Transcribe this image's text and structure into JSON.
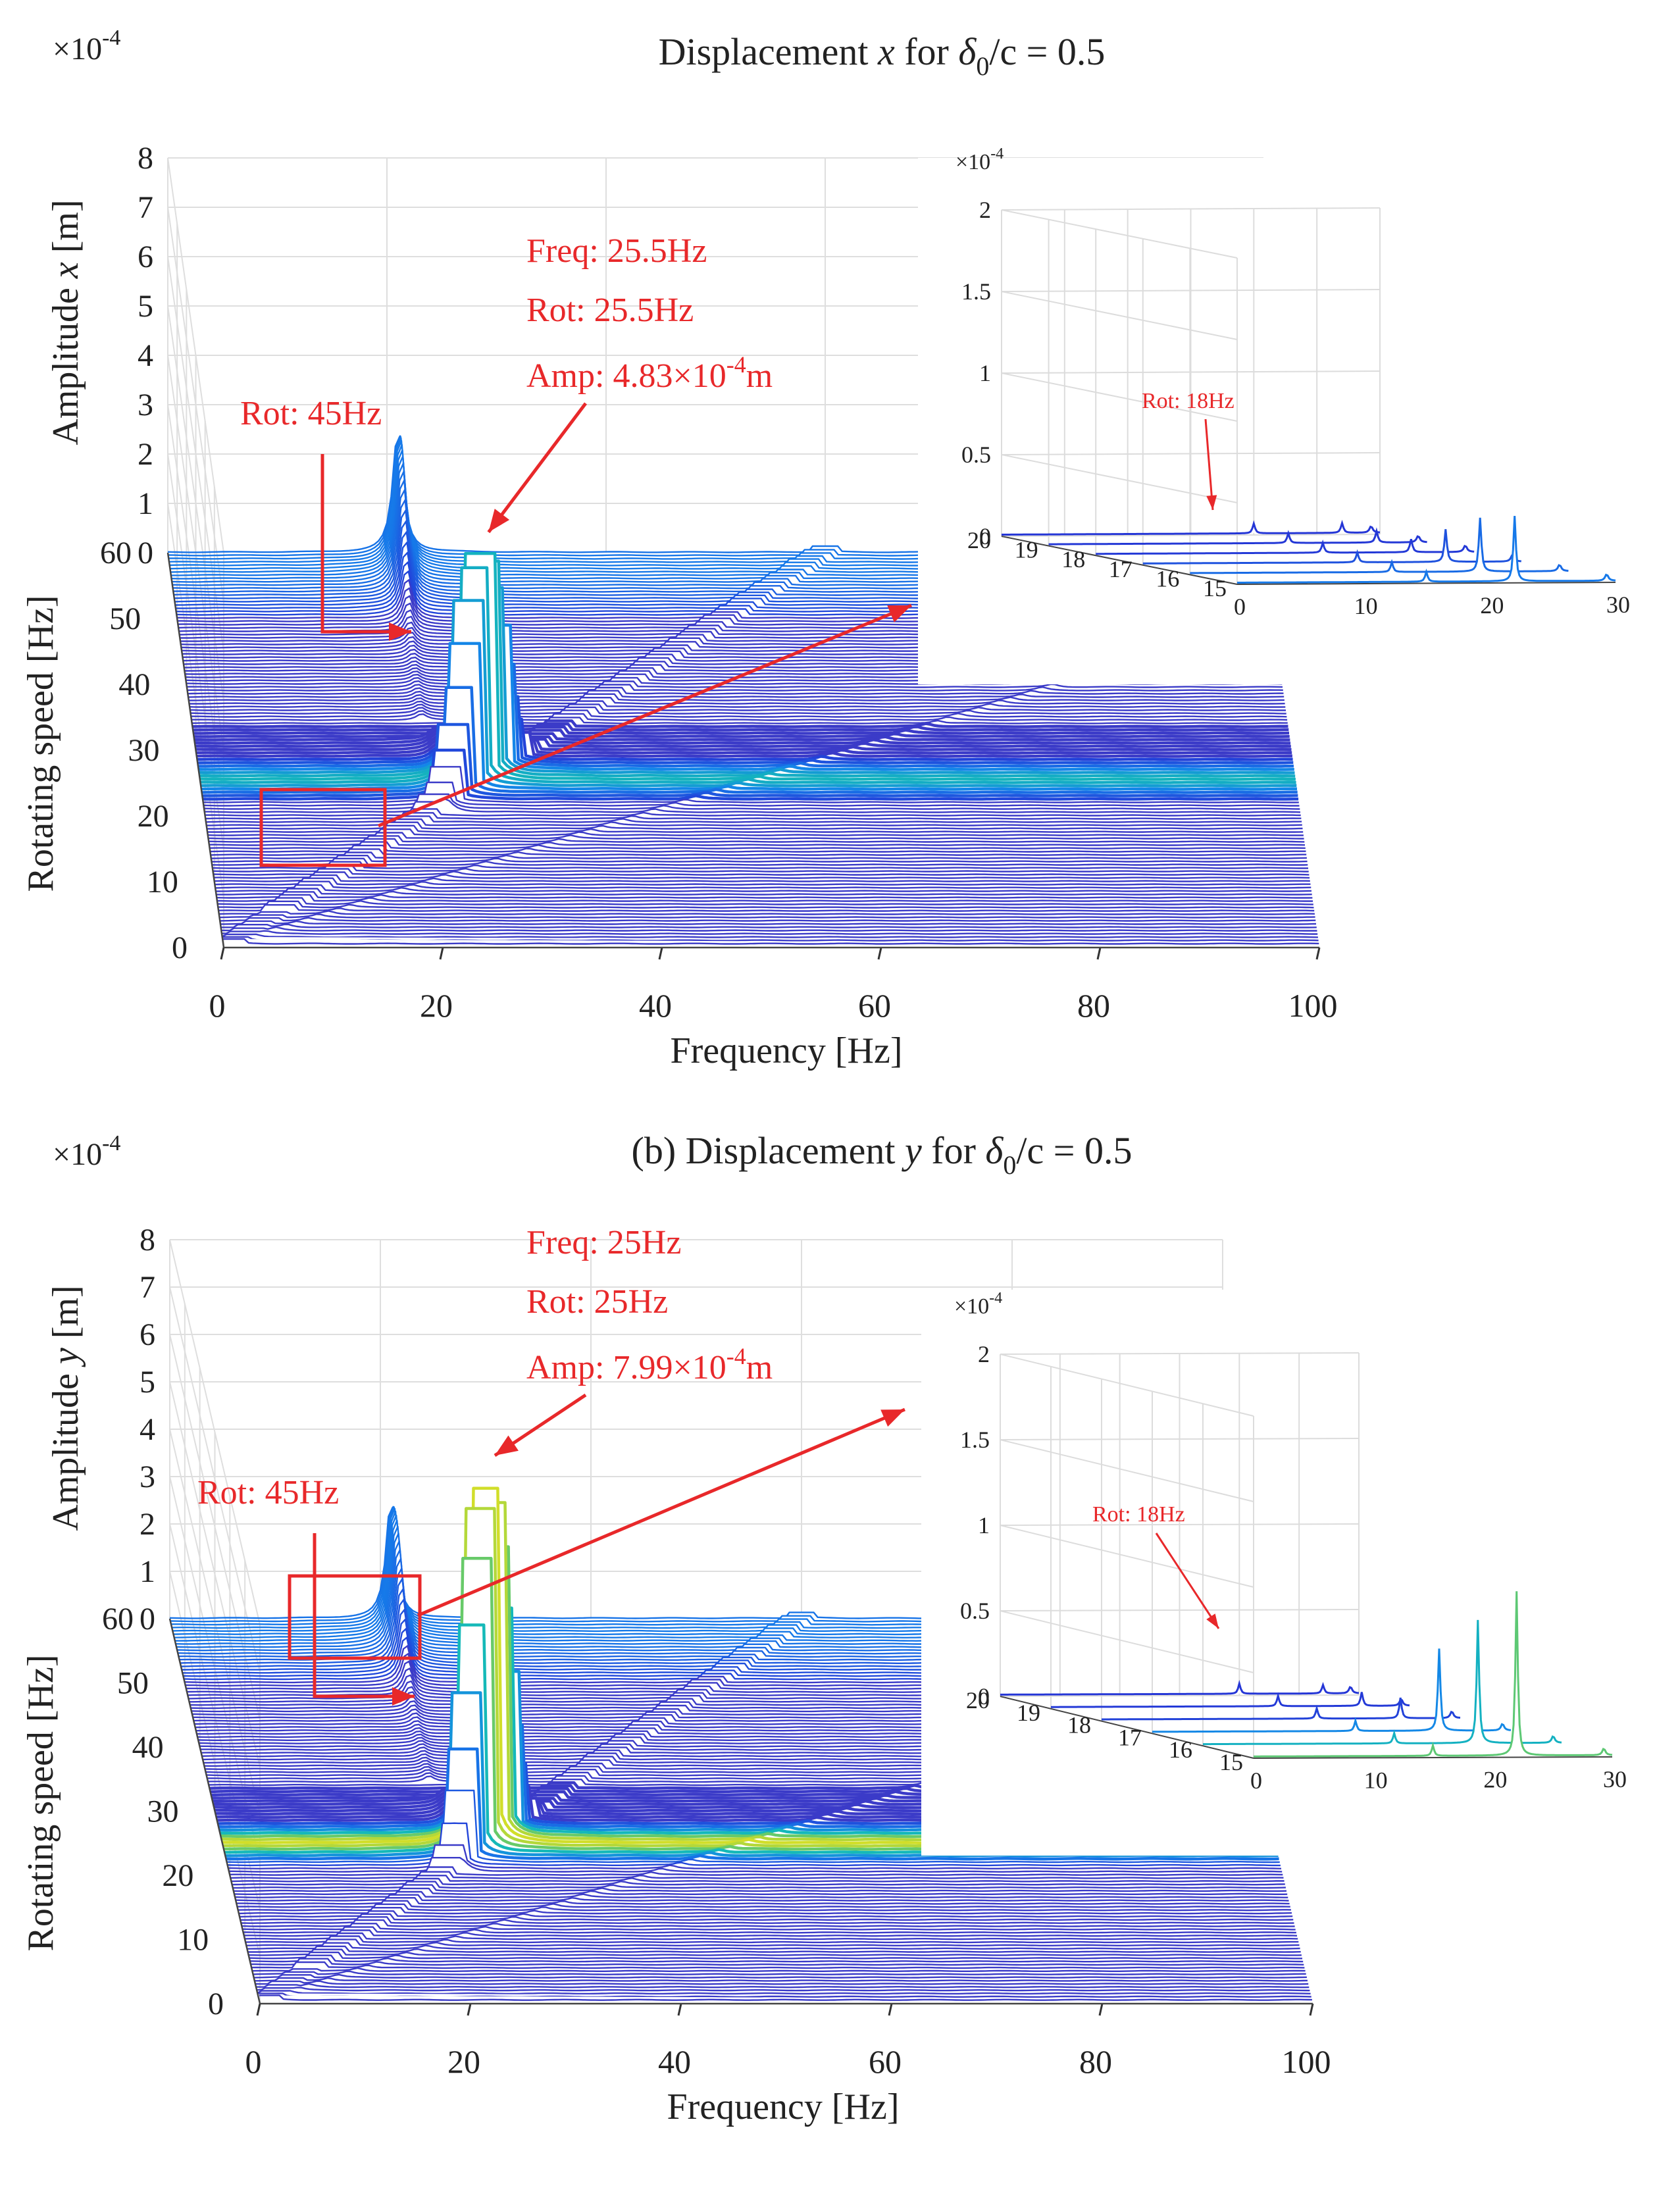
{
  "chart_data": [
    {
      "type": "waterfall",
      "title_prefix": "Displacement ",
      "title_var": "x",
      "title_mid": " for ",
      "title_delta": "δ",
      "title_sub": "0",
      "title_suffix": "/c = 0.5",
      "multiplier": "×10",
      "multiplier_exp": "-4",
      "xlabel": "Frequency [Hz]",
      "ylabel": "Rotating speed [Hz]",
      "zlabel_prefix": "Amplitude ",
      "zlabel_var": "x",
      "zlabel_suffix": " [m]",
      "x_ticks": [
        "0",
        "20",
        "40",
        "60",
        "80",
        "100"
      ],
      "y_ticks": [
        "0",
        "10",
        "20",
        "30",
        "40",
        "50",
        "60"
      ],
      "z_ticks": [
        "0",
        "1",
        "2",
        "3",
        "4",
        "5",
        "6",
        "7",
        "8"
      ],
      "xlim": [
        0,
        100
      ],
      "ylim": [
        0,
        60
      ],
      "zlim": [
        0,
        8
      ],
      "peak": {
        "freq_hz": 25.5,
        "rot_hz": 25.5,
        "amp_e4": 4.83
      },
      "annotations": {
        "freq": "Freq: 25.5Hz",
        "rot": "Rot: 25.5Hz",
        "amp_prefix": "Amp: 4.83",
        "amp_mult": "×10",
        "amp_exp": "-4",
        "amp_unit": "m",
        "rot45": "Rot: 45Hz"
      },
      "inset": {
        "multiplier": "×10",
        "multiplier_exp": "-4",
        "z_ticks": [
          "0",
          "0.5",
          "1",
          "1.5",
          "2"
        ],
        "y_ticks": [
          "15",
          "16",
          "17",
          "18",
          "19",
          "20"
        ],
        "x_ticks": [
          "0",
          "10",
          "20",
          "30"
        ],
        "annotation": "Rot: 18Hz"
      }
    },
    {
      "type": "waterfall",
      "title_prefix": "(b) Displacement ",
      "title_var": "y",
      "title_mid": " for ",
      "title_delta": "δ",
      "title_sub": "0",
      "title_suffix": "/c = 0.5",
      "multiplier": "×10",
      "multiplier_exp": "-4",
      "xlabel": "Frequency [Hz]",
      "ylabel": "Rotating speed [Hz]",
      "zlabel_prefix": "Amplitude ",
      "zlabel_var": "y",
      "zlabel_suffix": " [m]",
      "x_ticks": [
        "0",
        "20",
        "40",
        "60",
        "80",
        "100"
      ],
      "y_ticks": [
        "0",
        "10",
        "20",
        "30",
        "40",
        "50",
        "60"
      ],
      "z_ticks": [
        "0",
        "1",
        "2",
        "3",
        "4",
        "5",
        "6",
        "7",
        "8"
      ],
      "xlim": [
        0,
        100
      ],
      "ylim": [
        0,
        60
      ],
      "zlim": [
        0,
        8
      ],
      "peak": {
        "freq_hz": 25,
        "rot_hz": 25,
        "amp_e4": 7.99
      },
      "annotations": {
        "freq": "Freq: 25Hz",
        "rot": "Rot: 25Hz",
        "amp_prefix": "Amp: 7.99",
        "amp_mult": "×10",
        "amp_exp": "-4",
        "amp_unit": "m",
        "rot45": "Rot: 45Hz"
      },
      "inset": {
        "multiplier": "×10",
        "multiplier_exp": "-4",
        "z_ticks": [
          "0",
          "0.5",
          "1",
          "1.5",
          "2"
        ],
        "y_ticks": [
          "15",
          "16",
          "17",
          "18",
          "19",
          "20"
        ],
        "x_ticks": [
          "0",
          "10",
          "20",
          "30"
        ],
        "annotation": "Rot: 18Hz"
      }
    }
  ]
}
